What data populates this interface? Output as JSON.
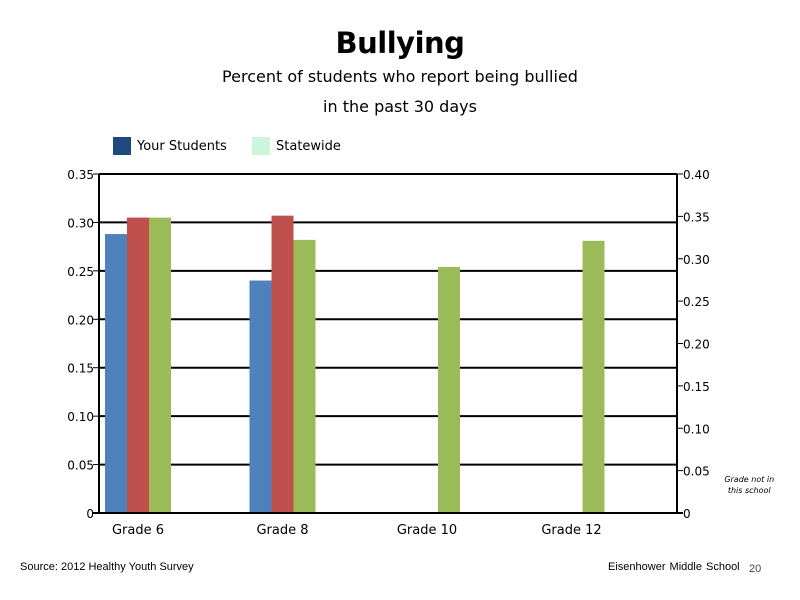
{
  "chart_data": {
    "type": "bar",
    "title": "Bullying",
    "subtitle_lines": [
      "Percent of students who report being bullied",
      "in the past 30 days"
    ],
    "categories": [
      "Grade 6",
      "Grade 8",
      "Grade 10",
      "Grade 12"
    ],
    "extra_slots": [
      {
        "line1": "Grade not in",
        "line2": "this school"
      },
      {
        "line1": "Grade not in",
        "line2": "this school"
      }
    ],
    "legend": [
      {
        "label": "Your Students",
        "color": "#1F497D"
      },
      {
        "label": "Statewide",
        "color": "#CCF5D9"
      }
    ],
    "series": [
      {
        "color": "#4F81BD",
        "values": [
          0.288,
          0.24,
          null,
          null
        ]
      },
      {
        "color": "#C0504D",
        "values": [
          0.305,
          0.307,
          null,
          null
        ]
      },
      {
        "color": "#9BBB59",
        "values": [
          0.305,
          0.282,
          0.254,
          0.281
        ]
      }
    ],
    "y_left": {
      "min": 0,
      "max": 0.35,
      "ticks": [
        "0",
        "0.05",
        "0.10",
        "0.15",
        "0.20",
        "0.25",
        "0.30",
        "0.35"
      ]
    },
    "y_right": {
      "min": 0,
      "max": 0.4,
      "ticks": [
        "0",
        "0.05",
        "0.10",
        "0.15",
        "0.20",
        "0.25",
        "0.30",
        "0.35",
        "0.40"
      ]
    },
    "grid": true
  },
  "footer": {
    "source": "Source: 2012 Healthy Youth Survey",
    "school": "Eisenhower Middle  School",
    "page_number": "20"
  }
}
